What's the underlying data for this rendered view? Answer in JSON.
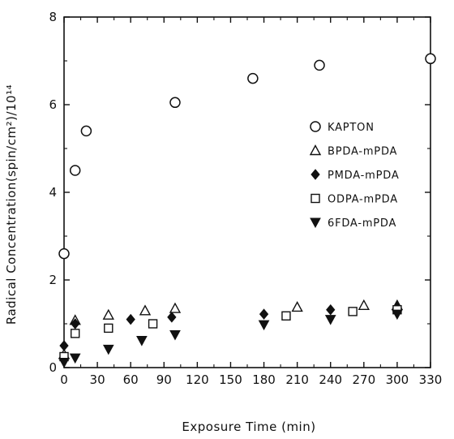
{
  "chart_data": {
    "type": "scatter",
    "title": "",
    "xlabel": "Exposure Time (min)",
    "ylabel": "Radical Concentration(spin/cm²)/10¹⁴",
    "xlim": [
      0,
      330
    ],
    "ylim": [
      0,
      8
    ],
    "xticks": [
      0,
      30,
      60,
      90,
      120,
      150,
      180,
      210,
      240,
      270,
      300,
      330
    ],
    "xtick_labels": [
      "0",
      "30",
      "60",
      "90",
      "120",
      "150",
      "180",
      "210",
      "240",
      "270",
      "300",
      "330"
    ],
    "yticks": [
      0,
      2,
      4,
      6,
      8
    ],
    "ytick_labels": [
      "0",
      "2",
      "4",
      "6",
      "8"
    ],
    "grid": false,
    "legend_position": "right",
    "series": [
      {
        "name": "KAPTON",
        "marker": "open-circle",
        "x": [
          0,
          10,
          20,
          100,
          170,
          230,
          330
        ],
        "y": [
          2.6,
          4.5,
          5.4,
          6.05,
          6.6,
          6.9,
          7.05
        ]
      },
      {
        "name": "BPDA-mPDA",
        "marker": "open-triangle-up",
        "x": [
          0,
          10,
          40,
          73,
          100,
          210,
          270,
          300
        ],
        "y": [
          0.3,
          1.08,
          1.2,
          1.3,
          1.35,
          1.38,
          1.42,
          1.42
        ]
      },
      {
        "name": "PMDA-mPDA",
        "marker": "filled-diamond",
        "x": [
          0,
          10,
          60,
          97,
          180,
          240,
          300
        ],
        "y": [
          0.5,
          1.0,
          1.1,
          1.15,
          1.22,
          1.32,
          1.38
        ]
      },
      {
        "name": "ODPA-mPDA",
        "marker": "open-square",
        "x": [
          0,
          10,
          40,
          80,
          200,
          260,
          300
        ],
        "y": [
          0.25,
          0.78,
          0.9,
          1.0,
          1.18,
          1.28,
          1.32
        ]
      },
      {
        "name": "6FDA-mPDA",
        "marker": "filled-triangle-down",
        "x": [
          0,
          10,
          40,
          70,
          100,
          180,
          240,
          300
        ],
        "y": [
          0.12,
          0.22,
          0.42,
          0.62,
          0.75,
          0.98,
          1.1,
          1.22
        ]
      }
    ]
  }
}
